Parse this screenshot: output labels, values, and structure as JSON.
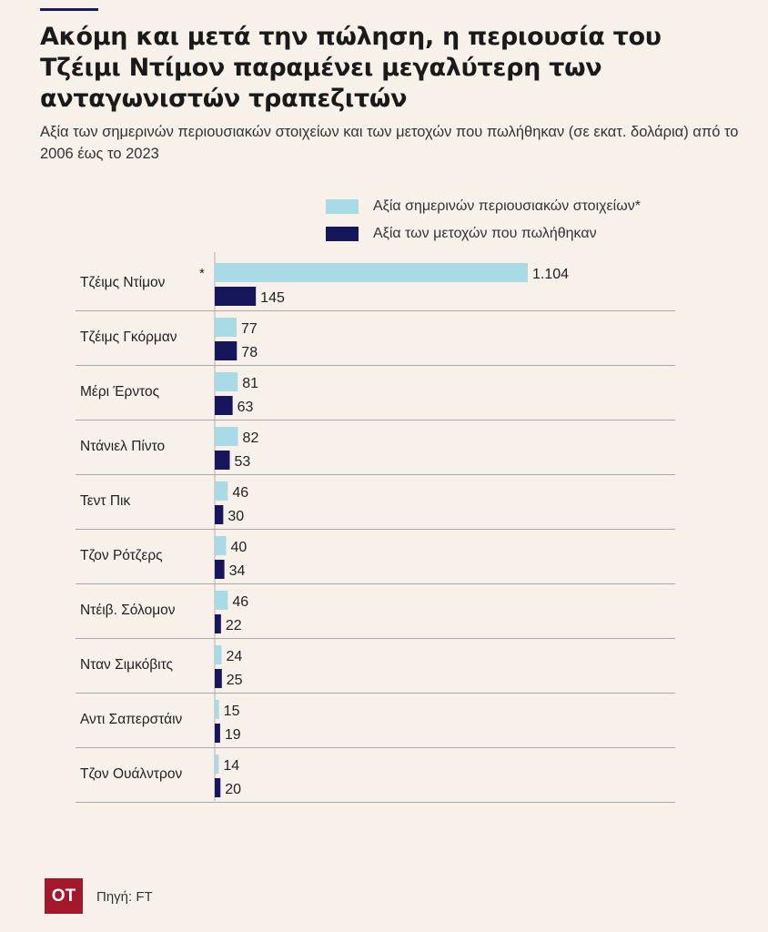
{
  "header": {
    "title": "Ακόμη και μετά την πώληση, η περιουσία του Τζέιμι Ντίμον παραμένει μεγαλύτερη των ανταγωνιστών τραπεζιτών",
    "subtitle": "Αξία των σημερινών περιουσιακών στοιχείων και των μετοχών που πωλήθηκαν (σε εκατ. δολάρια) από το 2006 έως το 2023"
  },
  "footer": {
    "logo": "OT",
    "source": "Πηγή: FT"
  },
  "colors": {
    "current": "#a8dbe6",
    "sold": "#16165c",
    "grid": "#a9a9a9"
  },
  "chart_data": {
    "type": "bar",
    "orientation": "horizontal",
    "categories": [
      "Τζέιμς Ντίμον",
      "Τζέιμς Γκόρμαν",
      "Μέρι Έρντος",
      "Ντάνιελ Πίντο",
      "Τεντ Πικ",
      "Τζον Ρότζερς",
      "Ντέιβ. Σόλομον",
      "Νταν Σιμκόβιτς",
      "Αντι Σαπερστάιν",
      "Τζον Ουάλντρον"
    ],
    "category_markers": [
      "*",
      "",
      "",
      "",
      "",
      "",
      "",
      "",
      "",
      ""
    ],
    "series": [
      {
        "name": "Αξία σημερινών περιουσιακών στοιχείων*",
        "values": [
          1104,
          77,
          81,
          82,
          46,
          40,
          46,
          24,
          15,
          14
        ],
        "labels": [
          "1.104",
          "77",
          "81",
          "82",
          "46",
          "40",
          "46",
          "24",
          "15",
          "14"
        ]
      },
      {
        "name": "Αξία των μετοχών που πωλήθηκαν",
        "values": [
          145,
          78,
          63,
          53,
          30,
          34,
          22,
          25,
          19,
          20
        ],
        "labels": [
          "145",
          "78",
          "63",
          "53",
          "30",
          "34",
          "22",
          "25",
          "19",
          "20"
        ]
      }
    ],
    "xlim": [
      0,
      1104
    ],
    "grid": false,
    "legend_position": "top-right"
  }
}
